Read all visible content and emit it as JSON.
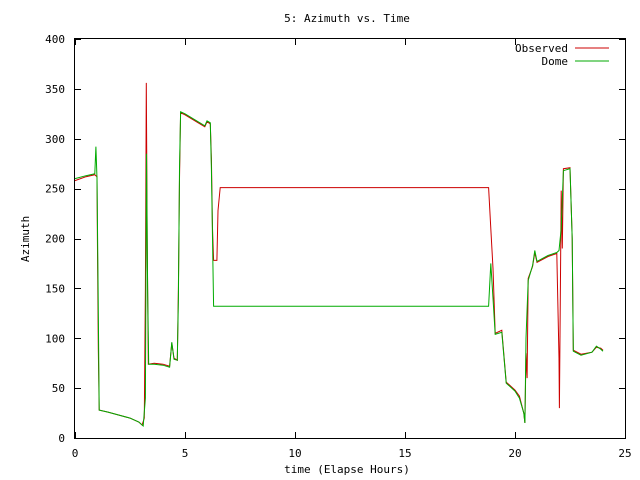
{
  "chart_data": {
    "type": "line",
    "title": "5: Azimuth vs. Time",
    "xlabel": "time (Elapse Hours)",
    "ylabel": "Azimuth",
    "xlim": [
      0,
      25
    ],
    "ylim": [
      0,
      400
    ],
    "xticks": [
      0,
      5,
      10,
      15,
      20,
      25
    ],
    "yticks": [
      0,
      50,
      100,
      150,
      200,
      250,
      300,
      350,
      400
    ],
    "grid": false,
    "legend_position": "top-right",
    "series": [
      {
        "name": "Observed",
        "color": "#cc0000",
        "points": [
          [
            0,
            258
          ],
          [
            0.5,
            262
          ],
          [
            0.9,
            264
          ],
          [
            1.0,
            262
          ],
          [
            1.02,
            200
          ],
          [
            1.06,
            90
          ],
          [
            1.1,
            28
          ],
          [
            1.5,
            26
          ],
          [
            2.0,
            23
          ],
          [
            2.5,
            20
          ],
          [
            2.9,
            16
          ],
          [
            3.05,
            13
          ],
          [
            3.15,
            20
          ],
          [
            3.2,
            150
          ],
          [
            3.24,
            356
          ],
          [
            3.28,
            200
          ],
          [
            3.33,
            74
          ],
          [
            3.6,
            75
          ],
          [
            4.0,
            74
          ],
          [
            4.3,
            72
          ],
          [
            4.4,
            95
          ],
          [
            4.5,
            80
          ],
          [
            4.65,
            78
          ],
          [
            4.7,
            150
          ],
          [
            4.75,
            260
          ],
          [
            4.8,
            326
          ],
          [
            5.0,
            324
          ],
          [
            5.3,
            320
          ],
          [
            5.6,
            316
          ],
          [
            5.9,
            312
          ],
          [
            6.0,
            317
          ],
          [
            6.15,
            315
          ],
          [
            6.2,
            280
          ],
          [
            6.25,
            210
          ],
          [
            6.3,
            178
          ],
          [
            6.45,
            178
          ],
          [
            6.5,
            228
          ],
          [
            6.6,
            251
          ],
          [
            10.0,
            251
          ],
          [
            15.0,
            251
          ],
          [
            18.8,
            251
          ],
          [
            18.9,
            210
          ],
          [
            19.0,
            170
          ],
          [
            19.1,
            105
          ],
          [
            19.4,
            108
          ],
          [
            19.6,
            56
          ],
          [
            20.0,
            48
          ],
          [
            20.2,
            42
          ],
          [
            20.4,
            25
          ],
          [
            20.45,
            15
          ],
          [
            20.5,
            85
          ],
          [
            20.55,
            60
          ],
          [
            20.6,
            160
          ],
          [
            20.8,
            172
          ],
          [
            20.9,
            186
          ],
          [
            21.0,
            176
          ],
          [
            21.5,
            182
          ],
          [
            21.9,
            185
          ],
          [
            22.0,
            80
          ],
          [
            22.02,
            30
          ],
          [
            22.1,
            248
          ],
          [
            22.15,
            190
          ],
          [
            22.2,
            270
          ],
          [
            22.5,
            271
          ],
          [
            22.6,
            200
          ],
          [
            22.65,
            88
          ],
          [
            23.0,
            84
          ],
          [
            23.5,
            86
          ],
          [
            23.7,
            91
          ],
          [
            23.9,
            90
          ],
          [
            24.0,
            88
          ]
        ]
      },
      {
        "name": "Dome",
        "color": "#00aa00",
        "points": [
          [
            0,
            260
          ],
          [
            0.5,
            263
          ],
          [
            0.9,
            265
          ],
          [
            0.95,
            292
          ],
          [
            1.0,
            260
          ],
          [
            1.05,
            150
          ],
          [
            1.1,
            28
          ],
          [
            1.5,
            26
          ],
          [
            2.0,
            23
          ],
          [
            2.5,
            20
          ],
          [
            2.9,
            16
          ],
          [
            3.1,
            12
          ],
          [
            3.2,
            40
          ],
          [
            3.25,
            285
          ],
          [
            3.3,
            150
          ],
          [
            3.35,
            74
          ],
          [
            3.6,
            74
          ],
          [
            4.0,
            73
          ],
          [
            4.3,
            71
          ],
          [
            4.4,
            96
          ],
          [
            4.5,
            79
          ],
          [
            4.65,
            78
          ],
          [
            4.7,
            140
          ],
          [
            4.75,
            270
          ],
          [
            4.8,
            327
          ],
          [
            5.0,
            325
          ],
          [
            5.3,
            321
          ],
          [
            5.6,
            317
          ],
          [
            5.9,
            313
          ],
          [
            6.0,
            318
          ],
          [
            6.15,
            316
          ],
          [
            6.2,
            270
          ],
          [
            6.25,
            200
          ],
          [
            6.3,
            132
          ],
          [
            10.0,
            132
          ],
          [
            15.0,
            132
          ],
          [
            18.8,
            132
          ],
          [
            18.9,
            175
          ],
          [
            19.0,
            140
          ],
          [
            19.1,
            104
          ],
          [
            19.4,
            106
          ],
          [
            19.6,
            55
          ],
          [
            20.0,
            47
          ],
          [
            20.2,
            40
          ],
          [
            20.4,
            25
          ],
          [
            20.45,
            15
          ],
          [
            20.5,
            100
          ],
          [
            20.6,
            158
          ],
          [
            20.8,
            173
          ],
          [
            20.9,
            188
          ],
          [
            21.0,
            177
          ],
          [
            21.5,
            183
          ],
          [
            21.9,
            186
          ],
          [
            22.0,
            188
          ],
          [
            22.1,
            210
          ],
          [
            22.2,
            268
          ],
          [
            22.5,
            270
          ],
          [
            22.6,
            200
          ],
          [
            22.65,
            87
          ],
          [
            23.0,
            83
          ],
          [
            23.5,
            86
          ],
          [
            23.7,
            92
          ],
          [
            23.9,
            89
          ],
          [
            24.0,
            87
          ]
        ]
      }
    ]
  }
}
